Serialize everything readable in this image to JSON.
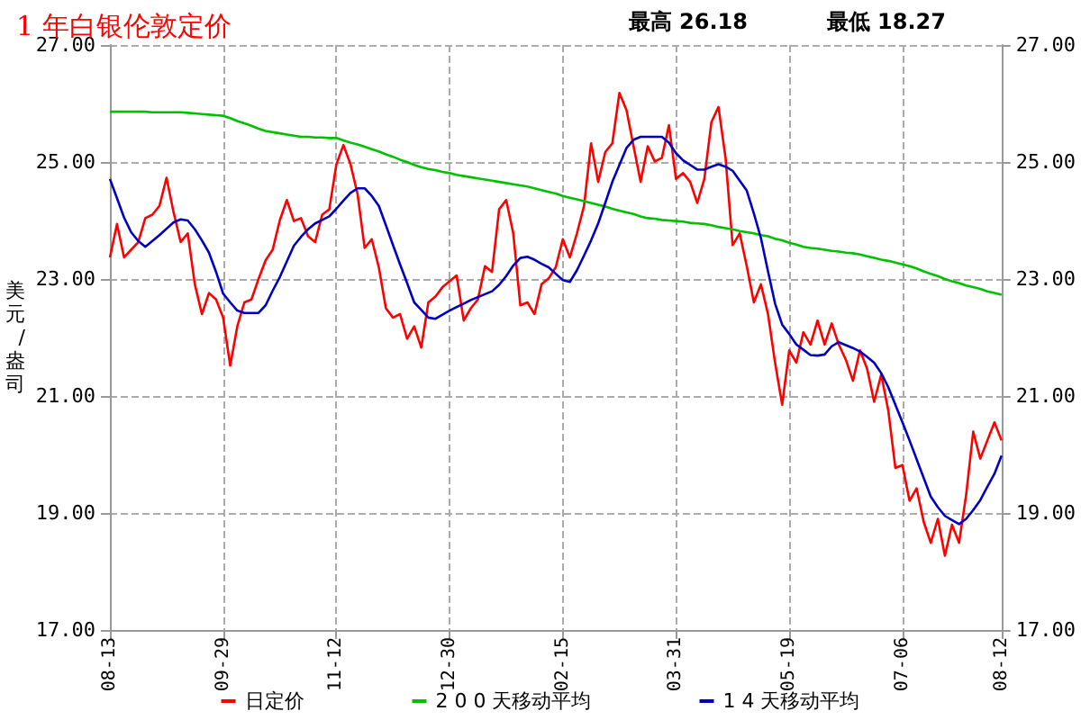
{
  "chart_data": {
    "type": "line",
    "title": "1 年白银伦敦定价",
    "annotations": [
      "最高 26.18",
      "最低 18.27"
    ],
    "ylabel": "美元/盎司",
    "categories": [
      "08-13",
      null,
      null,
      null,
      null,
      null,
      null,
      null,
      null,
      null,
      null,
      null,
      null,
      null,
      null,
      null,
      "09-29",
      null,
      null,
      null,
      null,
      null,
      null,
      null,
      null,
      null,
      null,
      null,
      null,
      null,
      null,
      null,
      "11-12",
      null,
      null,
      null,
      null,
      null,
      null,
      null,
      null,
      null,
      null,
      null,
      null,
      null,
      null,
      null,
      "12-30",
      null,
      null,
      null,
      null,
      null,
      null,
      null,
      null,
      null,
      null,
      null,
      null,
      null,
      null,
      null,
      "02-15",
      null,
      null,
      null,
      null,
      null,
      null,
      null,
      null,
      null,
      null,
      null,
      null,
      null,
      null,
      null,
      "03-31",
      null,
      null,
      null,
      null,
      null,
      null,
      null,
      null,
      null,
      null,
      null,
      null,
      null,
      null,
      null,
      "05-19",
      null,
      null,
      null,
      null,
      null,
      null,
      null,
      null,
      null,
      null,
      null,
      null,
      null,
      null,
      null,
      "07-06",
      null,
      null,
      null,
      null,
      null,
      null,
      null,
      null,
      null,
      null,
      null,
      null,
      null,
      "08-12"
    ],
    "series": [
      {
        "name": "日定价",
        "color": "#ff0000",
        "values": [
          23.37,
          23.94,
          23.37,
          23.5,
          23.63,
          24.04,
          24.1,
          24.25,
          24.73,
          24.14,
          23.63,
          23.78,
          22.91,
          22.4,
          22.76,
          22.65,
          22.34,
          21.52,
          22.19,
          22.6,
          22.65,
          23.0,
          23.32,
          23.5,
          24.0,
          24.35,
          23.99,
          24.04,
          23.73,
          23.63,
          24.1,
          24.19,
          24.96,
          25.29,
          24.96,
          24.45,
          23.53,
          23.68,
          23.2,
          22.5,
          22.34,
          22.4,
          21.98,
          22.19,
          21.83,
          22.6,
          22.7,
          22.86,
          22.96,
          23.06,
          22.29,
          22.5,
          22.65,
          23.22,
          23.12,
          24.19,
          24.35,
          23.78,
          22.55,
          22.6,
          22.4,
          22.91,
          23.01,
          23.2,
          23.68,
          23.37,
          23.78,
          24.25,
          25.32,
          24.66,
          25.17,
          25.32,
          26.18,
          25.89,
          25.27,
          24.66,
          25.27,
          25.01,
          25.07,
          25.63,
          24.71,
          24.81,
          24.66,
          24.3,
          24.71,
          25.68,
          25.94,
          25.07,
          23.58,
          23.78,
          23.22,
          22.6,
          22.91,
          22.4,
          21.57,
          20.85,
          21.78,
          21.57,
          22.09,
          21.88,
          22.29,
          21.88,
          22.24,
          21.88,
          21.62,
          21.26,
          21.78,
          21.47,
          20.9,
          21.37,
          20.75,
          19.77,
          19.82,
          19.21,
          19.42,
          18.85,
          18.49,
          18.9,
          18.27,
          18.8,
          18.49,
          19.31,
          20.39,
          19.93,
          20.24,
          20.55,
          20.24
        ]
      },
      {
        "name": "2 0 0 天移动平均",
        "color": "#00c000",
        "values": [
          25.86,
          25.86,
          25.86,
          25.86,
          25.86,
          25.86,
          25.85,
          25.85,
          25.85,
          25.85,
          25.85,
          25.84,
          25.83,
          25.82,
          25.81,
          25.8,
          25.79,
          25.75,
          25.7,
          25.66,
          25.62,
          25.57,
          25.53,
          25.51,
          25.49,
          25.47,
          25.45,
          25.43,
          25.43,
          25.42,
          25.42,
          25.41,
          25.41,
          25.37,
          25.33,
          25.3,
          25.26,
          25.22,
          25.18,
          25.13,
          25.09,
          25.04,
          25.0,
          24.95,
          24.91,
          24.88,
          24.86,
          24.83,
          24.81,
          24.78,
          24.76,
          24.74,
          24.72,
          24.7,
          24.68,
          24.66,
          24.64,
          24.62,
          24.6,
          24.58,
          24.55,
          24.52,
          24.49,
          24.46,
          24.42,
          24.39,
          24.36,
          24.33,
          24.3,
          24.27,
          24.24,
          24.2,
          24.17,
          24.14,
          24.11,
          24.07,
          24.04,
          24.03,
          24.01,
          24.0,
          23.99,
          23.98,
          23.96,
          23.95,
          23.94,
          23.92,
          23.89,
          23.87,
          23.85,
          23.82,
          23.8,
          23.78,
          23.75,
          23.73,
          23.69,
          23.66,
          23.62,
          23.59,
          23.55,
          23.53,
          23.52,
          23.5,
          23.48,
          23.47,
          23.45,
          23.44,
          23.42,
          23.39,
          23.36,
          23.33,
          23.31,
          23.28,
          23.25,
          23.22,
          23.18,
          23.13,
          23.09,
          23.05,
          23.0,
          22.96,
          22.93,
          22.89,
          22.86,
          22.83,
          22.79,
          22.76,
          22.73
        ]
      },
      {
        "name": "1 4 天移动平均",
        "color": "#0000c0",
        "values": [
          24.71,
          24.38,
          24.05,
          23.8,
          23.65,
          23.55,
          23.65,
          23.75,
          23.86,
          23.97,
          24.02,
          24.0,
          23.85,
          23.66,
          23.45,
          23.12,
          22.75,
          22.6,
          22.46,
          22.42,
          22.42,
          22.42,
          22.55,
          22.8,
          23.03,
          23.3,
          23.57,
          23.72,
          23.85,
          23.95,
          24.01,
          24.07,
          24.2,
          24.34,
          24.47,
          24.55,
          24.55,
          24.42,
          24.25,
          23.92,
          23.58,
          23.25,
          22.93,
          22.6,
          22.47,
          22.34,
          22.32,
          22.39,
          22.46,
          22.52,
          22.58,
          22.64,
          22.69,
          22.74,
          22.79,
          22.9,
          23.05,
          23.23,
          23.36,
          23.38,
          23.33,
          23.26,
          23.2,
          23.09,
          22.98,
          22.95,
          23.15,
          23.4,
          23.66,
          23.95,
          24.3,
          24.66,
          24.95,
          25.24,
          25.38,
          25.43,
          25.43,
          25.43,
          25.43,
          25.33,
          25.15,
          25.03,
          24.95,
          24.87,
          24.87,
          24.92,
          24.96,
          24.92,
          24.85,
          24.68,
          24.51,
          24.12,
          23.7,
          23.13,
          22.58,
          22.22,
          22.06,
          21.88,
          21.79,
          21.7,
          21.69,
          21.71,
          21.85,
          21.92,
          21.87,
          21.82,
          21.76,
          21.67,
          21.57,
          21.39,
          21.15,
          20.85,
          20.55,
          20.24,
          19.92,
          19.6,
          19.28,
          19.1,
          18.95,
          18.88,
          18.81,
          18.9,
          19.05,
          19.22,
          19.45,
          19.67,
          19.98
        ]
      }
    ],
    "ylim": [
      17,
      27
    ],
    "yticks": [
      {
        "value": 17,
        "label": "17.00"
      },
      {
        "value": 19,
        "label": "19.00"
      },
      {
        "value": 21,
        "label": "21.00"
      },
      {
        "value": 23,
        "label": "23.00"
      },
      {
        "value": 25,
        "label": "25.00"
      },
      {
        "value": 27,
        "label": "27.00"
      }
    ],
    "y2lim": [
      17,
      27
    ],
    "y2ticks": [
      {
        "value": 17,
        "label": "17.00"
      },
      {
        "value": 19,
        "label": "19.00"
      },
      {
        "value": 21,
        "label": "21.00"
      },
      {
        "value": 23,
        "label": "23.00"
      },
      {
        "value": 25,
        "label": "25.00"
      },
      {
        "value": 27,
        "label": "27.00"
      }
    ],
    "grid": true,
    "legend": "bottom"
  }
}
